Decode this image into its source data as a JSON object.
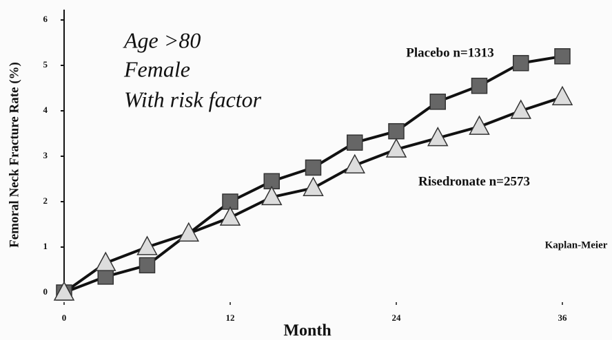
{
  "chart_data": {
    "type": "line",
    "x_label": "Month",
    "y_label": "Femoral Neck Fracture Rate (%)",
    "annotations": [
      "Age >80",
      "Female",
      "With risk factor",
      "Kaplan-Meier"
    ],
    "series": [
      {
        "name": "Placebo n=1313",
        "color": "#666666",
        "marker": "square",
        "x": [
          0,
          3,
          6,
          12,
          15,
          18,
          21,
          24,
          27,
          30,
          33,
          36
        ],
        "values": [
          0,
          0.35,
          0.6,
          2.0,
          2.45,
          2.75,
          3.3,
          3.55,
          4.2,
          4.55,
          5.05,
          5.2
        ]
      },
      {
        "name": "Risedronate n=2573",
        "color": "#dddddd",
        "marker": "triangle",
        "x": [
          0,
          3,
          6,
          9,
          12,
          15,
          18,
          21,
          24,
          27,
          30,
          33,
          36
        ],
        "values": [
          0,
          0.65,
          1.0,
          1.3,
          1.65,
          2.1,
          2.3,
          2.8,
          3.15,
          3.4,
          3.65,
          4.0,
          4.3
        ]
      }
    ],
    "xlim": [
      0,
      36
    ],
    "xticks": [
      0,
      12,
      24,
      36
    ],
    "ylim": [
      0,
      6
    ],
    "yticks": [
      0,
      1,
      2,
      3,
      4,
      5,
      6
    ]
  }
}
